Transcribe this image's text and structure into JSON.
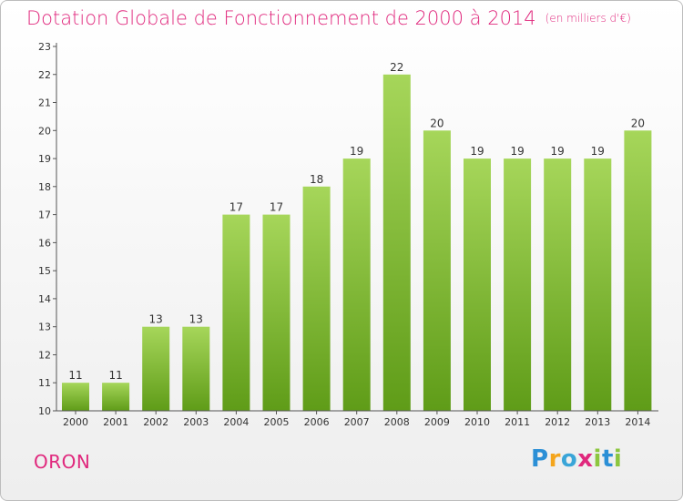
{
  "header": {
    "title": "Dotation Globale de Fonctionnement de 2000 à 2014",
    "subtitle": "(en milliers d'€)"
  },
  "footer": {
    "town": "ORON",
    "logo": {
      "text": "Proxiti",
      "letters": [
        {
          "ch": "P",
          "color": "#2b8fd6"
        },
        {
          "ch": "r",
          "color": "#f4a51c"
        },
        {
          "ch": "o",
          "color": "#3aa5d8"
        },
        {
          "ch": "x",
          "color": "#e0287d"
        },
        {
          "ch": "i",
          "color": "#8cc63f"
        },
        {
          "ch": "t",
          "color": "#2b8fd6"
        },
        {
          "ch": "i",
          "color": "#8cc63f"
        }
      ]
    }
  },
  "chart_data": {
    "type": "bar",
    "title": "Dotation Globale de Fonctionnement de 2000 à 2014",
    "subtitle": "(en milliers d'€)",
    "xlabel": "",
    "ylabel": "",
    "categories": [
      "2000",
      "2001",
      "2002",
      "2003",
      "2004",
      "2005",
      "2006",
      "2007",
      "2008",
      "2009",
      "2010",
      "2011",
      "2012",
      "2013",
      "2014"
    ],
    "values": [
      11,
      11,
      13,
      13,
      17,
      17,
      18,
      19,
      22,
      20,
      19,
      19,
      19,
      19,
      20
    ],
    "ylim": [
      10,
      23
    ],
    "yticks": [
      10,
      11,
      12,
      13,
      14,
      15,
      16,
      17,
      18,
      19,
      20,
      21,
      22,
      23
    ],
    "grid": false,
    "data_labels": true,
    "colors": {
      "bar_top": "#a6d65a",
      "bar_bottom": "#5f9c18",
      "axis": "#555555",
      "text": "#333333"
    }
  }
}
